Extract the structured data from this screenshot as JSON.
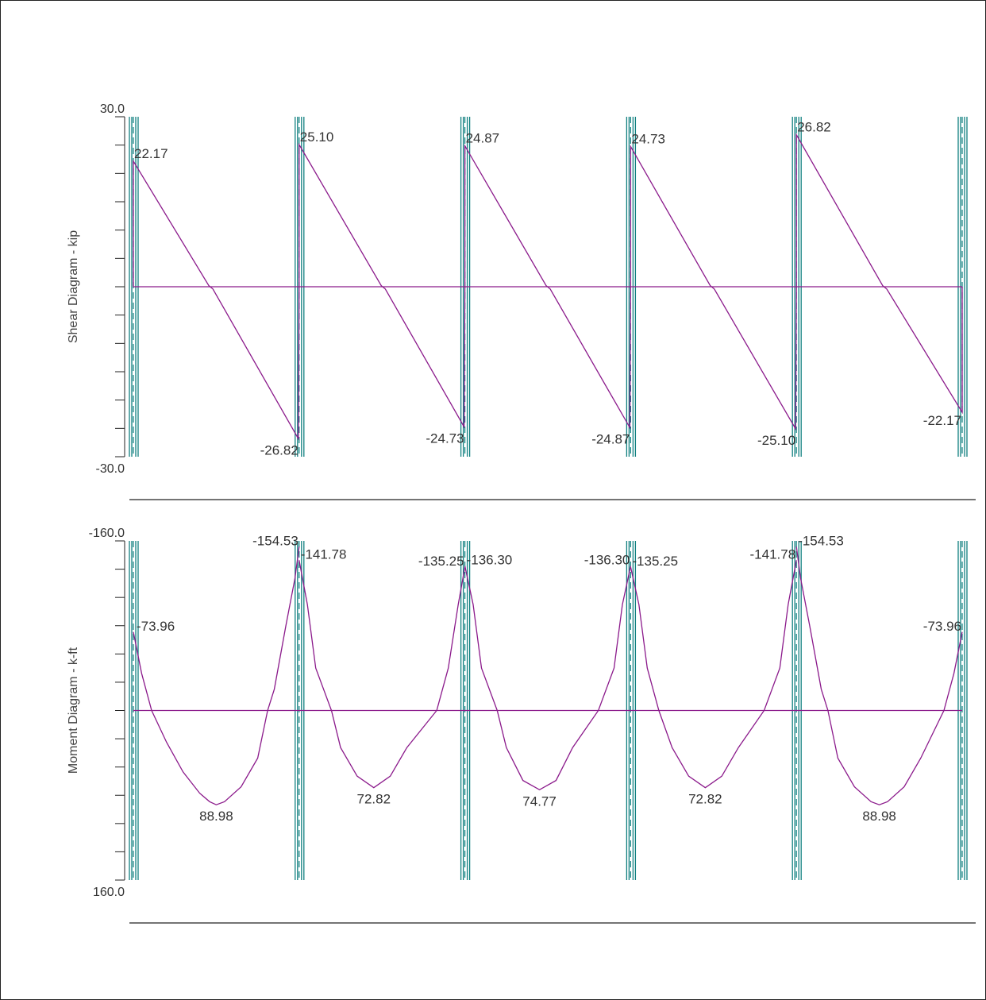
{
  "colors": {
    "diagram": "#8b1a8b",
    "support": "#108080",
    "axis": "#222222"
  },
  "chart_data": [
    {
      "type": "line",
      "ylabel": "Shear Diagram - kip",
      "ylim": [
        30.0,
        -30.0
      ],
      "ytick_labels": {
        "top": "30.0",
        "bottom": "-30.0"
      },
      "x_range": [
        0,
        100
      ],
      "supports": [
        0,
        20,
        40,
        60,
        80,
        100
      ],
      "series": [
        {
          "values": [
            [
              0,
              0
            ],
            [
              0,
              22.17
            ],
            [
              9.1,
              0.2
            ],
            [
              9.6,
              -0.4
            ],
            [
              19.9,
              -26.82
            ],
            [
              20,
              0
            ],
            [
              20,
              25.1
            ],
            [
              29.9,
              0.2
            ],
            [
              30.4,
              -0.4
            ],
            [
              39.9,
              -24.73
            ],
            [
              40,
              0
            ],
            [
              40,
              24.87
            ],
            [
              49.8,
              0.2
            ],
            [
              50.3,
              -0.4
            ],
            [
              59.9,
              -24.87
            ],
            [
              60,
              0
            ],
            [
              60,
              24.73
            ],
            [
              69.6,
              0.2
            ],
            [
              70.1,
              -0.4
            ],
            [
              79.9,
              -25.1
            ],
            [
              80,
              0
            ],
            [
              80,
              26.82
            ],
            [
              90.4,
              0.2
            ],
            [
              90.9,
              -0.4
            ],
            [
              100,
              -22.17
            ],
            [
              100,
              0
            ]
          ]
        }
      ],
      "data_labels": [
        {
          "x": 0,
          "y": 22.17,
          "text": "22.17"
        },
        {
          "x": 20,
          "y": -26.82,
          "text": "-26.82"
        },
        {
          "x": 20,
          "y": 25.1,
          "text": "25.10"
        },
        {
          "x": 40,
          "y": -24.73,
          "text": "-24.73"
        },
        {
          "x": 40,
          "y": 24.87,
          "text": "24.87"
        },
        {
          "x": 60,
          "y": -24.87,
          "text": "-24.87"
        },
        {
          "x": 60,
          "y": 24.73,
          "text": "24.73"
        },
        {
          "x": 80,
          "y": -25.1,
          "text": "-25.10"
        },
        {
          "x": 80,
          "y": 26.82,
          "text": "26.82"
        },
        {
          "x": 100,
          "y": -22.17,
          "text": "-22.17"
        }
      ]
    },
    {
      "type": "line",
      "ylabel": "Moment Diagram - k-ft",
      "ylim": [
        -160.0,
        160.0
      ],
      "ytick_labels": {
        "top": "-160.0",
        "bottom": "160.0"
      },
      "x_range": [
        0,
        100
      ],
      "supports": [
        0,
        20,
        40,
        60,
        80,
        100
      ],
      "series": [
        {
          "values": [
            [
              0,
              -73.96
            ],
            [
              1,
              -35
            ],
            [
              2.2,
              0
            ],
            [
              4,
              30
            ],
            [
              6,
              58
            ],
            [
              8,
              78
            ],
            [
              9.2,
              86
            ],
            [
              10,
              88.98
            ],
            [
              11,
              86
            ],
            [
              13,
              72
            ],
            [
              15,
              45
            ],
            [
              16.2,
              0
            ],
            [
              17,
              -20
            ],
            [
              18.4,
              -80
            ],
            [
              19.5,
              -125
            ],
            [
              20,
              -154.53
            ]
          ]
        },
        {
          "values": [
            [
              20,
              -141.78
            ],
            [
              21,
              -100
            ],
            [
              22,
              -40
            ],
            [
              23.9,
              0
            ],
            [
              25,
              35
            ],
            [
              27,
              62
            ],
            [
              29,
              72.82
            ],
            [
              31,
              62
            ],
            [
              33,
              35
            ],
            [
              36.6,
              0
            ],
            [
              38,
              -40
            ],
            [
              39.2,
              -100
            ],
            [
              40,
              -135.25
            ]
          ]
        },
        {
          "values": [
            [
              40,
              -136.3
            ],
            [
              41,
              -100
            ],
            [
              42,
              -40
            ],
            [
              43.9,
              0
            ],
            [
              45,
              35
            ],
            [
              47,
              66
            ],
            [
              49,
              74.77
            ],
            [
              51,
              66
            ],
            [
              53,
              35
            ],
            [
              56.1,
              0
            ],
            [
              58,
              -40
            ],
            [
              59,
              -100
            ],
            [
              60,
              -136.3
            ]
          ]
        },
        {
          "values": [
            [
              60,
              -135.25
            ],
            [
              61,
              -100
            ],
            [
              62,
              -40
            ],
            [
              63.4,
              0
            ],
            [
              65,
              35
            ],
            [
              67,
              62
            ],
            [
              69,
              72.82
            ],
            [
              71,
              62
            ],
            [
              73,
              35
            ],
            [
              76.1,
              0
            ],
            [
              78,
              -40
            ],
            [
              79,
              -100
            ],
            [
              80,
              -141.78
            ]
          ]
        },
        {
          "values": [
            [
              80,
              -154.53
            ],
            [
              80.5,
              -125
            ],
            [
              81.6,
              -80
            ],
            [
              83,
              -20
            ],
            [
              83.8,
              0
            ],
            [
              85,
              45
            ],
            [
              87,
              72
            ],
            [
              89,
              86
            ],
            [
              90,
              88.98
            ],
            [
              91,
              86
            ],
            [
              93,
              72
            ],
            [
              95,
              45
            ],
            [
              97.8,
              0
            ],
            [
              99,
              -35
            ],
            [
              100,
              -73.96
            ]
          ]
        }
      ],
      "data_labels": [
        {
          "x": 0,
          "y": -73.96,
          "text": "-73.96"
        },
        {
          "x": 10,
          "y": 88.98,
          "text": "88.98"
        },
        {
          "x": 20,
          "y": -154.53,
          "text": "-154.53"
        },
        {
          "x": 20,
          "y": -141.78,
          "text": "-141.78"
        },
        {
          "x": 29,
          "y": 72.82,
          "text": "72.82"
        },
        {
          "x": 40,
          "y": -135.25,
          "text": "-135.25"
        },
        {
          "x": 40,
          "y": -136.3,
          "text": "-136.30"
        },
        {
          "x": 49,
          "y": 74.77,
          "text": "74.77"
        },
        {
          "x": 60,
          "y": -136.3,
          "text": "-136.30"
        },
        {
          "x": 60,
          "y": -135.25,
          "text": "-135.25"
        },
        {
          "x": 69,
          "y": 72.82,
          "text": "72.82"
        },
        {
          "x": 80,
          "y": -141.78,
          "text": "-141.78"
        },
        {
          "x": 80,
          "y": -154.53,
          "text": "-154.53"
        },
        {
          "x": 90,
          "y": 88.98,
          "text": "88.98"
        },
        {
          "x": 100,
          "y": -73.96,
          "text": "-73.96"
        }
      ]
    }
  ]
}
